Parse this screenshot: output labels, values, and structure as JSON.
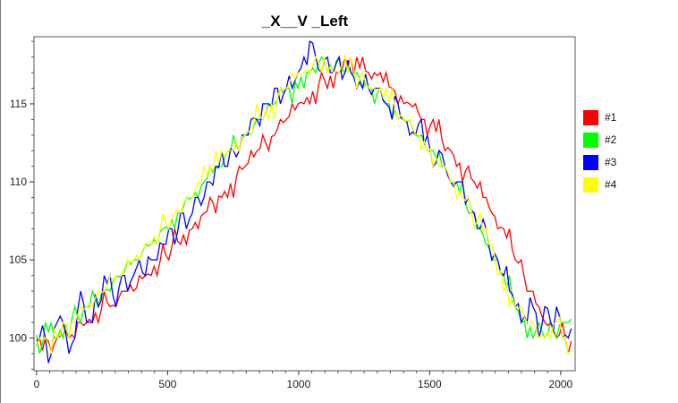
{
  "chart_data": {
    "type": "line",
    "title": "_X__V _Left",
    "xlabel": "",
    "ylabel": "",
    "xlim": [
      -10,
      2055
    ],
    "ylim": [
      97.9,
      119.3
    ],
    "xticks": [
      0,
      500,
      1000,
      1500,
      2000
    ],
    "yticks": [
      100,
      105,
      110,
      115
    ],
    "legend": "right",
    "grid": false,
    "x_step": 5,
    "series": [
      {
        "name": "#1",
        "color": "#ff0000",
        "values": [
          99.5,
          99.2,
          99.8,
          99.6,
          100.1,
          100.4,
          100.2,
          101.0,
          100.8,
          101.2,
          101.6,
          101.8,
          102.3,
          102.1,
          102.6,
          103.0,
          103.4,
          103.2,
          103.8,
          104.1,
          104.6,
          104.9,
          105.3,
          105.8,
          106.2,
          106.6,
          106.9,
          107.4,
          107.8,
          108.1,
          108.7,
          109.1,
          109.4,
          109.9,
          110.3,
          110.8,
          111.2,
          111.6,
          112.1,
          112.5,
          112.9,
          113.4,
          113.8,
          114.2,
          114.6,
          115.1,
          115.4,
          115.8,
          116.2,
          116.5,
          116.8,
          117.0,
          117.2,
          117.4,
          116.9,
          117.3,
          117.1,
          116.6,
          116.8,
          116.4,
          116.1,
          115.8,
          115.5,
          115.1,
          114.8,
          114.4,
          114.0,
          113.6,
          113.2,
          112.7,
          112.2,
          111.7,
          111.2,
          110.7,
          110.2,
          109.6,
          109.0,
          108.4,
          107.8,
          107.1,
          106.4,
          105.6,
          104.8,
          103.9,
          103.0,
          102.2,
          101.4,
          100.8,
          100.4,
          100.2,
          100.0,
          99.8
        ]
      },
      {
        "name": "#2",
        "color": "#00ff00",
        "values": [
          100.2,
          99.6,
          100.4,
          100.0,
          100.5,
          100.9,
          101.2,
          101.4,
          101.9,
          102.0,
          102.5,
          102.8,
          103.1,
          103.6,
          103.9,
          104.3,
          104.7,
          105.0,
          105.5,
          105.9,
          106.3,
          106.8,
          107.1,
          107.6,
          108.0,
          108.4,
          108.9,
          109.3,
          109.7,
          110.2,
          110.6,
          111.0,
          111.5,
          111.9,
          112.3,
          112.8,
          113.2,
          113.6,
          114.0,
          114.5,
          114.9,
          115.3,
          115.7,
          116.0,
          116.4,
          116.7,
          117.0,
          117.3,
          117.6,
          117.8,
          117.5,
          117.7,
          117.2,
          117.4,
          116.9,
          116.6,
          116.3,
          116.0,
          115.7,
          115.3,
          115.0,
          114.6,
          114.2,
          113.8,
          113.4,
          112.9,
          112.5,
          112.0,
          111.5,
          111.0,
          110.5,
          109.9,
          109.3,
          108.7,
          108.0,
          107.3,
          106.6,
          105.8,
          105.0,
          104.1,
          103.2,
          102.4,
          101.7,
          101.1,
          100.7,
          100.5,
          100.4,
          100.3,
          100.6,
          100.8,
          101.0,
          101.2
        ]
      },
      {
        "name": "#3",
        "color": "#0000ff",
        "values": [
          99.8,
          100.8,
          98.4,
          100.6,
          101.4,
          100.2,
          99.6,
          101.8,
          102.2,
          101.0,
          102.8,
          102.4,
          103.5,
          102.7,
          103.2,
          104.0,
          103.6,
          104.5,
          104.2,
          105.2,
          105.0,
          106.1,
          106.0,
          107.0,
          106.8,
          108.0,
          107.6,
          109.0,
          108.5,
          110.0,
          109.8,
          110.9,
          111.0,
          112.1,
          111.6,
          113.0,
          113.0,
          114.1,
          113.6,
          115.0,
          114.8,
          116.0,
          115.6,
          116.8,
          116.5,
          117.3,
          117.5,
          118.9,
          117.2,
          117.8,
          117.0,
          117.6,
          116.6,
          117.8,
          116.7,
          116.4,
          116.9,
          115.6,
          116.0,
          115.2,
          114.8,
          115.5,
          114.1,
          113.9,
          113.2,
          113.7,
          112.4,
          112.0,
          111.2,
          111.8,
          110.4,
          109.7,
          110.0,
          108.6,
          108.2,
          107.0,
          107.6,
          105.9,
          105.4,
          104.2,
          104.6,
          102.8,
          102.2,
          101.4,
          102.6,
          101.6,
          100.8,
          101.9,
          100.6,
          101.4,
          100.2,
          100.6
        ]
      },
      {
        "name": "#4",
        "color": "#ffff00",
        "values": [
          99.4,
          99.9,
          99.6,
          100.6,
          100.2,
          100.8,
          101.0,
          101.5,
          101.8,
          102.2,
          102.6,
          102.9,
          103.3,
          103.7,
          104.0,
          104.5,
          104.8,
          105.3,
          105.6,
          106.1,
          106.5,
          106.9,
          107.4,
          107.7,
          108.2,
          108.6,
          109.0,
          109.5,
          109.9,
          110.4,
          110.7,
          111.2,
          111.6,
          112.0,
          112.5,
          112.9,
          113.3,
          113.8,
          114.2,
          114.6,
          115.0,
          115.4,
          115.9,
          116.2,
          116.6,
          116.9,
          117.2,
          117.5,
          117.7,
          117.9,
          117.4,
          117.1,
          117.6,
          117.0,
          117.2,
          116.7,
          116.4,
          116.0,
          115.8,
          115.4,
          115.1,
          114.7,
          114.3,
          113.9,
          113.5,
          113.1,
          112.6,
          112.1,
          111.6,
          111.1,
          110.6,
          110.0,
          109.4,
          108.8,
          108.2,
          107.5,
          106.8,
          106.0,
          105.2,
          104.3,
          103.4,
          102.6,
          101.9,
          101.3,
          100.9,
          100.6,
          100.2,
          100.4,
          100.9,
          101.3,
          100.1,
          99.2
        ]
      }
    ]
  }
}
